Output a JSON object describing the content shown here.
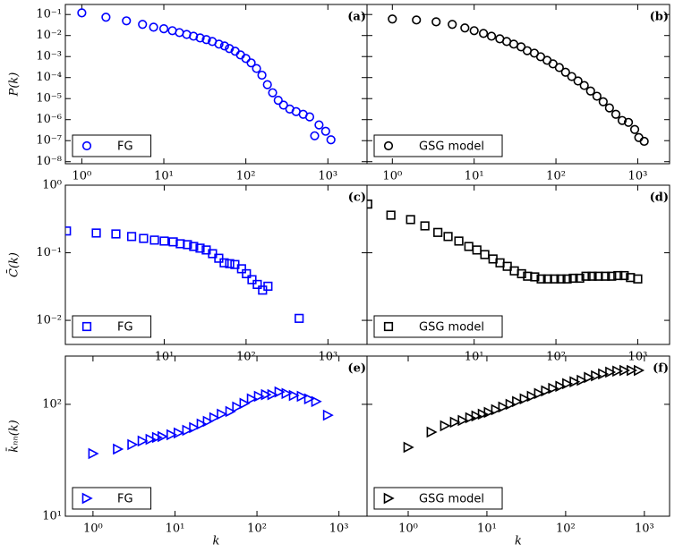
{
  "chart_data": [
    {
      "type": "scatter",
      "label": "(a)",
      "ylabel": "P(k)",
      "xscale": "log",
      "yscale": "log",
      "legend": "lower left",
      "marker": "circle",
      "x": [
        1,
        1.97,
        3.5,
        5.5,
        7.5,
        10,
        12.7,
        15.5,
        19,
        23,
        27.7,
        33,
        39,
        47,
        55,
        63,
        74,
        86,
        100,
        116,
        135,
        157,
        183,
        212,
        248,
        288,
        343,
        410,
        500,
        600,
        690,
        780,
        940,
        1090
      ],
      "series": [
        {
          "name": "FG",
          "color": "#0000ff",
          "values": [
            0.12,
            0.074,
            0.05,
            0.034,
            0.025,
            0.021,
            0.017,
            0.0138,
            0.0113,
            0.0093,
            0.0077,
            0.0064,
            0.0052,
            0.0039,
            0.0032,
            0.0024,
            0.0018,
            0.0012,
            0.00081,
            0.0005,
            0.00027,
            0.00013,
            4.6e-05,
            1.9e-05,
            8.3e-06,
            4.9e-06,
            3.2e-06,
            2.4e-06,
            1.8e-06,
            1.35e-06,
            1.7e-07,
            5.6e-07,
            2.8e-07,
            1.1e-07
          ]
        }
      ],
      "xlim": [
        0.63,
        3000
      ],
      "ylim": [
        8e-09,
        0.3
      ],
      "xticks": [
        {
          "value": 1,
          "label": "10⁰"
        },
        {
          "value": 10,
          "label": "10¹"
        },
        {
          "value": 100,
          "label": "10²"
        },
        {
          "value": 1000,
          "label": "10³"
        }
      ],
      "yticks": [
        {
          "value": 1e-08,
          "label": "10⁻⁸"
        },
        {
          "value": 1e-07,
          "label": "10⁻⁷"
        },
        {
          "value": 1e-06,
          "label": "10⁻⁶"
        },
        {
          "value": 1e-05,
          "label": "10⁻⁵"
        },
        {
          "value": 0.0001,
          "label": "10⁻⁴"
        },
        {
          "value": 0.001,
          "label": "10⁻³"
        },
        {
          "value": 0.01,
          "label": "10⁻²"
        },
        {
          "value": 0.1,
          "label": "10⁻¹"
        }
      ]
    },
    {
      "type": "scatter",
      "label": "(b)",
      "xscale": "log",
      "yscale": "log",
      "legend": "lower left",
      "marker": "circle",
      "x": [
        1,
        1.97,
        3.43,
        5.4,
        7.7,
        10,
        13,
        16.3,
        20.6,
        25,
        30.5,
        37.5,
        44.5,
        54.5,
        65,
        78,
        92,
        110,
        131,
        156,
        186,
        222,
        265,
        317,
        378,
        451,
        540,
        645,
        770,
        918,
        1030,
        1200
      ],
      "series": [
        {
          "name": "GSG model",
          "color": "#000000",
          "values": [
            0.061,
            0.055,
            0.045,
            0.034,
            0.023,
            0.017,
            0.0126,
            0.0093,
            0.007,
            0.0052,
            0.0039,
            0.0029,
            0.0019,
            0.00145,
            0.00098,
            0.00066,
            0.00045,
            0.0003,
            0.00018,
            0.000112,
            6.9e-05,
            4.2e-05,
            2.3e-05,
            1.3e-05,
            7.1e-06,
            3.6e-06,
            1.8e-06,
            9.1e-07,
            7.4e-07,
            3.4e-07,
            1.4e-07,
            9.3e-08
          ]
        }
      ],
      "xlim": [
        0.49,
        2450
      ],
      "ylim": [
        8e-09,
        0.3
      ],
      "xticks": [
        {
          "value": 1,
          "label": "10⁰"
        },
        {
          "value": 10,
          "label": "10¹"
        },
        {
          "value": 100,
          "label": "10²"
        },
        {
          "value": 1000,
          "label": "10³"
        }
      ]
    },
    {
      "type": "scatter",
      "label": "(c)",
      "ylabel": "C̄(k)",
      "xscale": "log",
      "yscale": "log",
      "legend": "lower left",
      "marker": "square",
      "x": [
        0.64,
        1.48,
        2.57,
        4,
        5.6,
        7.6,
        10,
        12.9,
        15.7,
        19.2,
        22.9,
        27.4,
        32.6,
        38.9,
        46.4,
        54,
        63,
        73,
        88,
        101,
        118,
        137,
        159,
        185,
        445
      ],
      "series": [
        {
          "name": "FG",
          "color": "#0000ff",
          "values": [
            0.21,
            0.196,
            0.19,
            0.174,
            0.163,
            0.154,
            0.149,
            0.145,
            0.136,
            0.132,
            0.124,
            0.117,
            0.11,
            0.097,
            0.083,
            0.071,
            0.069,
            0.067,
            0.058,
            0.049,
            0.04,
            0.034,
            0.028,
            0.032,
            0.0107
          ]
        }
      ],
      "xlim": [
        0.62,
        3000
      ],
      "ylim": [
        0.0044,
        1
      ],
      "xticks": [
        {
          "value": 10,
          "label": "10¹"
        },
        {
          "value": 100,
          "label": "10²"
        },
        {
          "value": 1000,
          "label": "10³"
        }
      ],
      "yticks": [
        {
          "value": 0.01,
          "label": "10⁻²"
        },
        {
          "value": 0.1,
          "label": "10⁻¹"
        },
        {
          "value": 1,
          "label": "10⁰"
        }
      ]
    },
    {
      "type": "scatter",
      "label": "(d)",
      "xscale": "log",
      "yscale": "log",
      "legend": "lower left",
      "marker": "square",
      "x": [
        0.5,
        0.96,
        1.67,
        2.5,
        3.6,
        4.8,
        6.5,
        8.6,
        10.8,
        13.5,
        17,
        20.7,
        25.4,
        31,
        38,
        45,
        55,
        66,
        79,
        96,
        115,
        137,
        163,
        195,
        233,
        277,
        330,
        402,
        480,
        572,
        683,
        815,
        1000
      ],
      "series": [
        {
          "name": "GSG model",
          "color": "#000000",
          "values": [
            0.525,
            0.36,
            0.31,
            0.25,
            0.2,
            0.174,
            0.149,
            0.124,
            0.11,
            0.094,
            0.081,
            0.071,
            0.063,
            0.054,
            0.049,
            0.045,
            0.044,
            0.041,
            0.041,
            0.041,
            0.041,
            0.041,
            0.042,
            0.042,
            0.045,
            0.045,
            0.045,
            0.045,
            0.045,
            0.046,
            0.046,
            0.043,
            0.041
          ]
        }
      ],
      "xlim": [
        0.49,
        2450
      ],
      "ylim": [
        0.0044,
        1
      ],
      "xticks": [
        {
          "value": 10,
          "label": "10¹"
        },
        {
          "value": 100,
          "label": "10²"
        },
        {
          "value": 1000,
          "label": "10³"
        }
      ]
    },
    {
      "type": "scatter",
      "label": "(e)",
      "ylabel": "k̄ₙₙ(k)",
      "xlabel": "k",
      "xscale": "log",
      "yscale": "log",
      "legend": "lower left",
      "marker": "triangle-right",
      "x": [
        1,
        2,
        3,
        4,
        5,
        6,
        7,
        9,
        11,
        14,
        17,
        21,
        25,
        30,
        37,
        47,
        57,
        70,
        86,
        105,
        128,
        153,
        187,
        228,
        280,
        350,
        430,
        525,
        730
      ],
      "series": [
        {
          "name": "FG",
          "color": "#0000ff",
          "values": [
            36.3,
            39.8,
            43.7,
            47,
            48.7,
            50.6,
            51.5,
            53.5,
            55.5,
            58.6,
            62,
            66.7,
            70.5,
            75.9,
            81.7,
            86.3,
            94.6,
            102,
            112,
            118,
            122,
            122,
            129,
            125,
            120,
            118,
            112,
            106,
            80
          ]
        }
      ],
      "xlim": [
        0.46,
        2200
      ],
      "ylim": [
        10,
        270
      ],
      "xticks": [
        {
          "value": 1,
          "label": "10⁰"
        },
        {
          "value": 10,
          "label": "10¹"
        },
        {
          "value": 100,
          "label": "10²"
        },
        {
          "value": 1000,
          "label": "10³"
        }
      ],
      "yticks": [
        {
          "value": 10,
          "label": "10¹"
        },
        {
          "value": 100,
          "label": "10²"
        }
      ]
    },
    {
      "type": "scatter",
      "label": "(f)",
      "xlabel": "k",
      "xscale": "log",
      "yscale": "log",
      "legend": "lower left",
      "marker": "triangle-right",
      "x": [
        1,
        1.97,
        2.92,
        3.9,
        4.9,
        6.1,
        7.3,
        8.8,
        10.5,
        13,
        16,
        19.8,
        24,
        30,
        37,
        45.6,
        56,
        69,
        85,
        104,
        129,
        159,
        196,
        241,
        297,
        366,
        451,
        555,
        684,
        843
      ],
      "series": [
        {
          "name": "GSG model",
          "color": "#000000",
          "values": [
            41.3,
            56.5,
            64.3,
            69.2,
            71.8,
            75.9,
            78.7,
            81.7,
            84.7,
            89.5,
            94.6,
            100,
            106,
            112,
            118,
            125,
            132,
            139,
            145,
            153,
            159,
            164,
            174,
            180,
            187,
            194,
            198,
            201,
            201,
            201
          ]
        }
      ],
      "xlim": [
        0.3,
        2090
      ],
      "ylim": [
        10,
        270
      ],
      "xticks": [
        {
          "value": 1,
          "label": "10⁰"
        },
        {
          "value": 10,
          "label": "10¹"
        },
        {
          "value": 100,
          "label": "10²"
        },
        {
          "value": 1000,
          "label": "10³"
        }
      ]
    }
  ]
}
